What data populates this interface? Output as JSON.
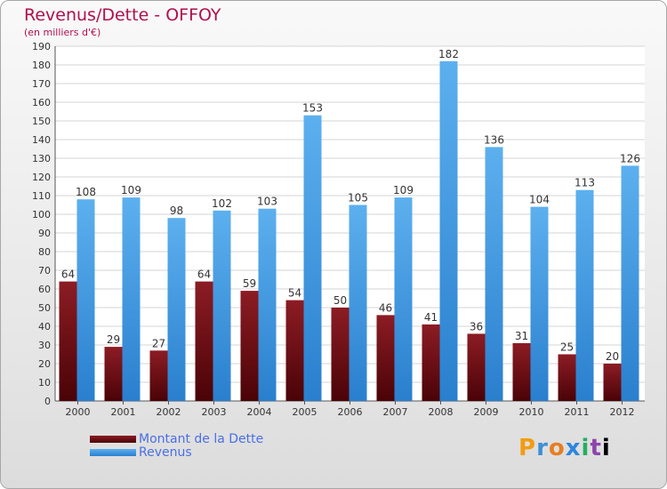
{
  "title": "Revenus/Dette - OFFOY",
  "subtitle": "(en milliers d'€)",
  "logo": "Proxiti",
  "colors": {
    "dette": "#6b0d12",
    "revenus": "#3a95e0",
    "title": "#b0104d",
    "legend_text": "#4a6fe6"
  },
  "chart_data": {
    "type": "bar",
    "title": "Revenus/Dette - OFFOY",
    "ylabel": "(en milliers d'€)",
    "categories": [
      "2000",
      "2001",
      "2002",
      "2003",
      "2004",
      "2005",
      "2006",
      "2007",
      "2008",
      "2009",
      "2010",
      "2011",
      "2012"
    ],
    "series": [
      {
        "name": "Montant de la Dette",
        "values": [
          64,
          29,
          27,
          64,
          59,
          54,
          50,
          46,
          41,
          36,
          31,
          25,
          20
        ]
      },
      {
        "name": "Revenus",
        "values": [
          108,
          109,
          98,
          102,
          103,
          153,
          105,
          109,
          182,
          136,
          104,
          113,
          126
        ]
      }
    ],
    "ylim": [
      0,
      190
    ],
    "yticks": [
      0,
      10,
      20,
      30,
      40,
      50,
      60,
      70,
      80,
      90,
      100,
      110,
      120,
      130,
      140,
      150,
      160,
      170,
      180,
      190
    ],
    "grid": true,
    "legend": "bottom-left"
  }
}
